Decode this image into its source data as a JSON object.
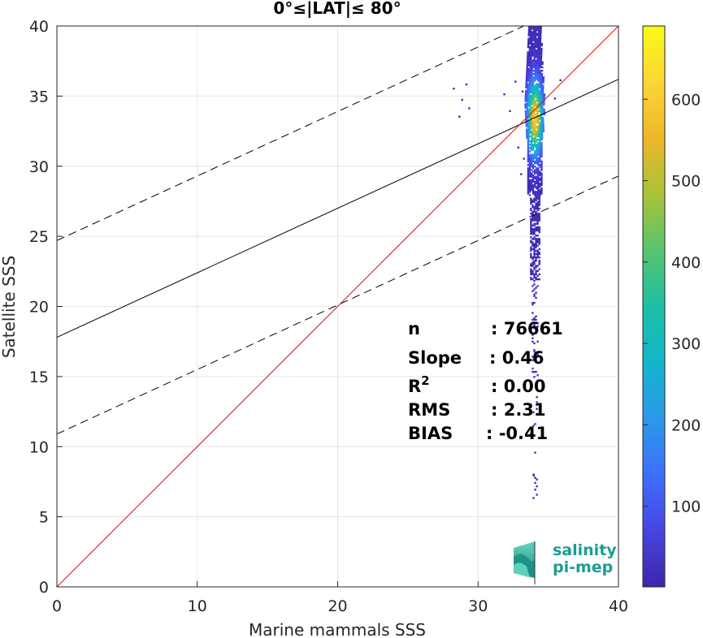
{
  "chart_data": {
    "type": "heatmap",
    "title": "0°≤|LAT|≤ 80°",
    "xlabel": "Marine mammals SSS",
    "ylabel": "Satellite SSS",
    "xlim": [
      0,
      40
    ],
    "ylim": [
      0,
      40
    ],
    "xticks": [
      "0",
      "10",
      "20",
      "30",
      "40"
    ],
    "yticks": [
      "0",
      "5",
      "10",
      "15",
      "20",
      "25",
      "30",
      "35",
      "40"
    ],
    "grid": true,
    "colorbar": {
      "min": 1,
      "max": 690,
      "ticks": [
        "100",
        "200",
        "300",
        "400",
        "500",
        "600"
      ],
      "colormap": [
        "#3e26a8",
        "#4745e2",
        "#3e6ffd",
        "#2c99ea",
        "#12b6cb",
        "#1ebfa5",
        "#57c570",
        "#a9c238",
        "#eeb72a",
        "#fcd536",
        "#f9fb15"
      ]
    },
    "lines": {
      "identity": {
        "slope": 1,
        "intercept": 0,
        "color": "#ff0000"
      },
      "fit": {
        "slope": 0.46,
        "intercept": 17.8,
        "color": "#000000"
      },
      "fit_upper": {
        "slope": 0.46,
        "intercept": 24.7,
        "style": "dashed"
      },
      "fit_lower": {
        "slope": 0.46,
        "intercept": 10.9,
        "style": "dashed"
      }
    },
    "density_core": {
      "x_center": 34.0,
      "y_center": 33.5,
      "peak_count": 690
    },
    "stats": [
      {
        "label": "n",
        "value": ": 76661"
      },
      {
        "label": "Slope",
        "value": ": 0.46"
      },
      {
        "label": "R",
        "value": ": 0.00",
        "superscript": "2"
      },
      {
        "label": "RMS",
        "value": ": 2.31"
      },
      {
        "label": "BIAS",
        "value": ": -0.41"
      }
    ]
  },
  "logo": {
    "line1": "salinity",
    "line2": "pi-mep",
    "color": "#1a9e93"
  }
}
